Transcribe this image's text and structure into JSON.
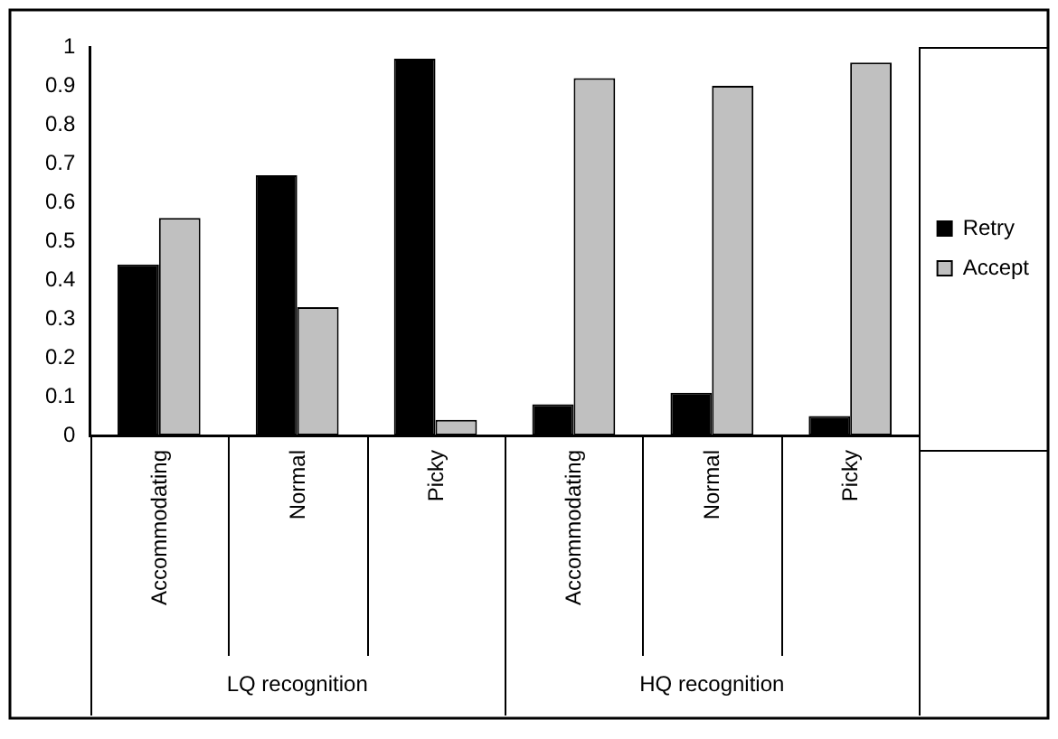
{
  "chart_data": {
    "type": "bar",
    "categories": [
      "Accommodating",
      "Normal",
      "Picky",
      "Accommodating",
      "Normal",
      "Picky"
    ],
    "series": [
      {
        "name": "Retry",
        "color": "#000000",
        "values": [
          0.44,
          0.67,
          0.97,
          0.08,
          0.11,
          0.05
        ]
      },
      {
        "name": "Accept",
        "color": "#c0c0c0",
        "values": [
          0.56,
          0.33,
          0.04,
          0.92,
          0.9,
          0.96
        ]
      }
    ],
    "annotations": [
      "LQ recognition",
      "HQ recognition"
    ],
    "ylim": [
      0,
      1
    ],
    "yticks": [
      0,
      0.1,
      0.2,
      0.3,
      0.4,
      0.5,
      0.6,
      0.7,
      0.8,
      0.9,
      1
    ],
    "grid": false,
    "legend": "right"
  }
}
